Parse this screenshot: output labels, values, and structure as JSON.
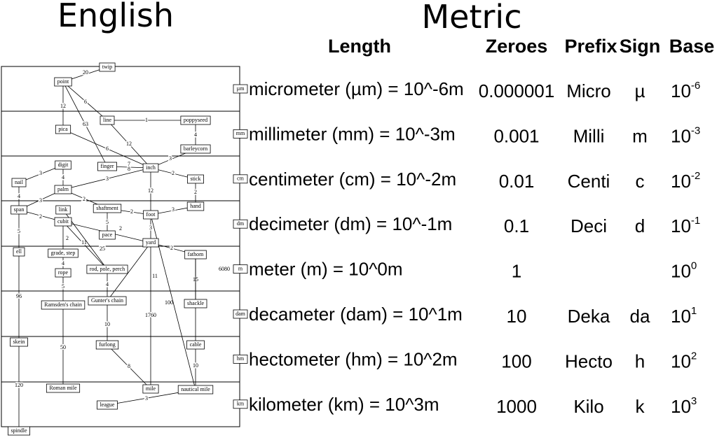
{
  "titles": {
    "english": "English",
    "metric": "Metric"
  },
  "table": {
    "headers": [
      "Length",
      "Zeroes",
      "Prefix",
      "Sign",
      "Base"
    ],
    "rows": [
      {
        "abbr": "µm",
        "length": "micrometer (µm) = 10^-6m",
        "zeroes": "0.000001",
        "prefix": "Micro",
        "sign": "µ",
        "base": "10",
        "exponent": "-6"
      },
      {
        "abbr": "mm",
        "length": "millimeter (mm) = 10^-3m",
        "zeroes": "0.001",
        "prefix": "Milli",
        "sign": "m",
        "base": "10",
        "exponent": "-3"
      },
      {
        "abbr": "cm",
        "length": "centimeter (cm) = 10^-2m",
        "zeroes": "0.01",
        "prefix": "Centi",
        "sign": "c",
        "base": "10",
        "exponent": "-2"
      },
      {
        "abbr": "dm",
        "length": "decimeter (dm) = 10^-1m",
        "zeroes": "0.1",
        "prefix": "Deci",
        "sign": "d",
        "base": "10",
        "exponent": "-1"
      },
      {
        "abbr": "m",
        "length": "meter (m) = 10^0m",
        "zeroes": "1",
        "base": "10",
        "exponent": "0"
      },
      {
        "abbr": "dam",
        "length": "decameter (dam) = 10^1m",
        "zeroes": "10",
        "prefix": "Deka",
        "sign": "da",
        "base": "10",
        "exponent": "1"
      },
      {
        "abbr": "hm",
        "length": "hectometer (hm) = 10^2m",
        "zeroes": "100",
        "prefix": "Hecto",
        "sign": "h",
        "base": "10",
        "exponent": "2"
      },
      {
        "abbr": "km",
        "length": "kilometer (km) = 10^3m",
        "zeroes": "1000",
        "prefix": "Kilo",
        "sign": "k",
        "base": "10",
        "exponent": "3"
      }
    ]
  },
  "diagram": {
    "nodes": [
      {
        "label": "twip"
      },
      {
        "label": "point"
      },
      {
        "label": "line"
      },
      {
        "label": "poppyseed"
      },
      {
        "label": "pica"
      },
      {
        "label": "barleycorn"
      },
      {
        "label": "digit"
      },
      {
        "label": "finger"
      },
      {
        "label": "inch"
      },
      {
        "label": "nail"
      },
      {
        "label": "stick"
      },
      {
        "label": "palm"
      },
      {
        "label": "link"
      },
      {
        "label": "shaftment"
      },
      {
        "label": "hand"
      },
      {
        "label": "span"
      },
      {
        "label": "cubit"
      },
      {
        "label": "foot"
      },
      {
        "label": "pace"
      },
      {
        "label": "yard"
      },
      {
        "label": "ell"
      },
      {
        "label": "grade, step"
      },
      {
        "label": "fathom"
      },
      {
        "label": "rope"
      },
      {
        "label": "rod, pole, perch"
      },
      {
        "label": "Ramsden's chain"
      },
      {
        "label": "Gunter's chain"
      },
      {
        "label": "shackle"
      },
      {
        "label": "skein"
      },
      {
        "label": "furlong"
      },
      {
        "label": "cable"
      },
      {
        "label": "Roman mile"
      },
      {
        "label": "mile"
      },
      {
        "label": "nautical mile"
      },
      {
        "label": "league"
      },
      {
        "label": "spindle"
      }
    ],
    "edges": [
      {
        "label": "20"
      },
      {
        "label": "6"
      },
      {
        "label": "12"
      },
      {
        "label": "63"
      },
      {
        "label": "1"
      },
      {
        "label": "12"
      },
      {
        "label": "6"
      },
      {
        "label": "4"
      },
      {
        "label": "3"
      },
      {
        "numerator": "7",
        "denominator": "8"
      },
      {
        "label": "3"
      },
      {
        "label": "4"
      },
      {
        "label": "3"
      },
      {
        "label": "2"
      },
      {
        "label": "12"
      },
      {
        "label": "2"
      },
      {
        "label": "4"
      },
      {
        "label": "3"
      },
      {
        "label": "2"
      },
      {
        "label": "2"
      },
      {
        "label": "2"
      },
      {
        "label": "3"
      },
      {
        "label": "5"
      },
      {
        "label": "2"
      },
      {
        "label": "3"
      },
      {
        "label": "2"
      },
      {
        "label": "11"
      },
      {
        "label": "25"
      },
      {
        "label": "5"
      },
      {
        "label": "2"
      },
      {
        "label": "4"
      },
      {
        "label": "5"
      },
      {
        "label": "4"
      },
      {
        "label": "11"
      },
      {
        "label": "15"
      },
      {
        "label": "100"
      },
      {
        "label": "6080"
      },
      {
        "label": "96"
      },
      {
        "label": "1760"
      },
      {
        "label": "50"
      },
      {
        "label": "10"
      },
      {
        "label": "8"
      },
      {
        "label": "10"
      },
      {
        "label": "120"
      },
      {
        "label": "3"
      }
    ]
  }
}
